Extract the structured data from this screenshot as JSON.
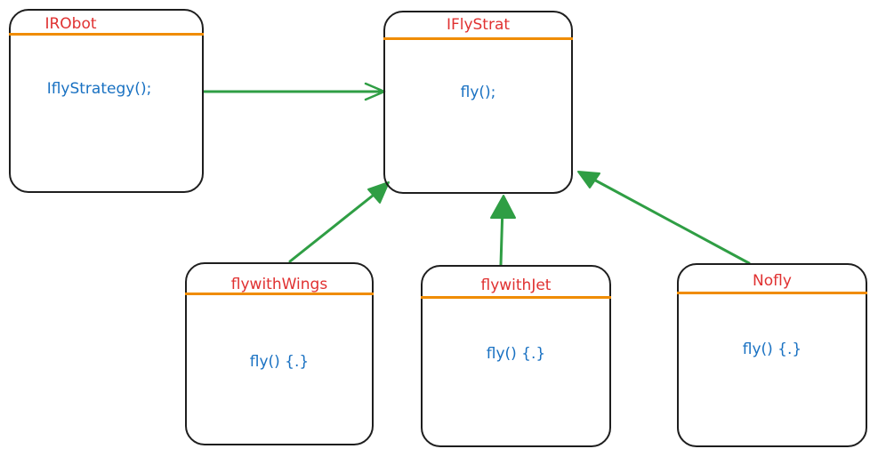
{
  "colors": {
    "title": "#e03131",
    "body": "#1971c2",
    "divider": "#f08c00",
    "arrow": "#2f9e44",
    "border": "#1e1e1e"
  },
  "boxes": {
    "irobot": {
      "title": "IRObot",
      "body": "IflyStrategy();"
    },
    "iflystrat": {
      "title": "IFlyStrat",
      "body": "fly();"
    },
    "flywithwings": {
      "title": "flywithWings",
      "body": "fly() {.}"
    },
    "flywithjet": {
      "title": "flywithJet",
      "body": "fly() {.}"
    },
    "nofly": {
      "title": "Nofly",
      "body": "fly() {.}"
    }
  },
  "arrows": [
    {
      "from": "IRObot",
      "to": "IFlyStrat",
      "head": "open"
    },
    {
      "from": "flywithWings",
      "to": "IFlyStrat",
      "head": "filled"
    },
    {
      "from": "flywithJet",
      "to": "IFlyStrat",
      "head": "filled"
    },
    {
      "from": "Nofly",
      "to": "IFlyStrat",
      "head": "filled"
    }
  ]
}
